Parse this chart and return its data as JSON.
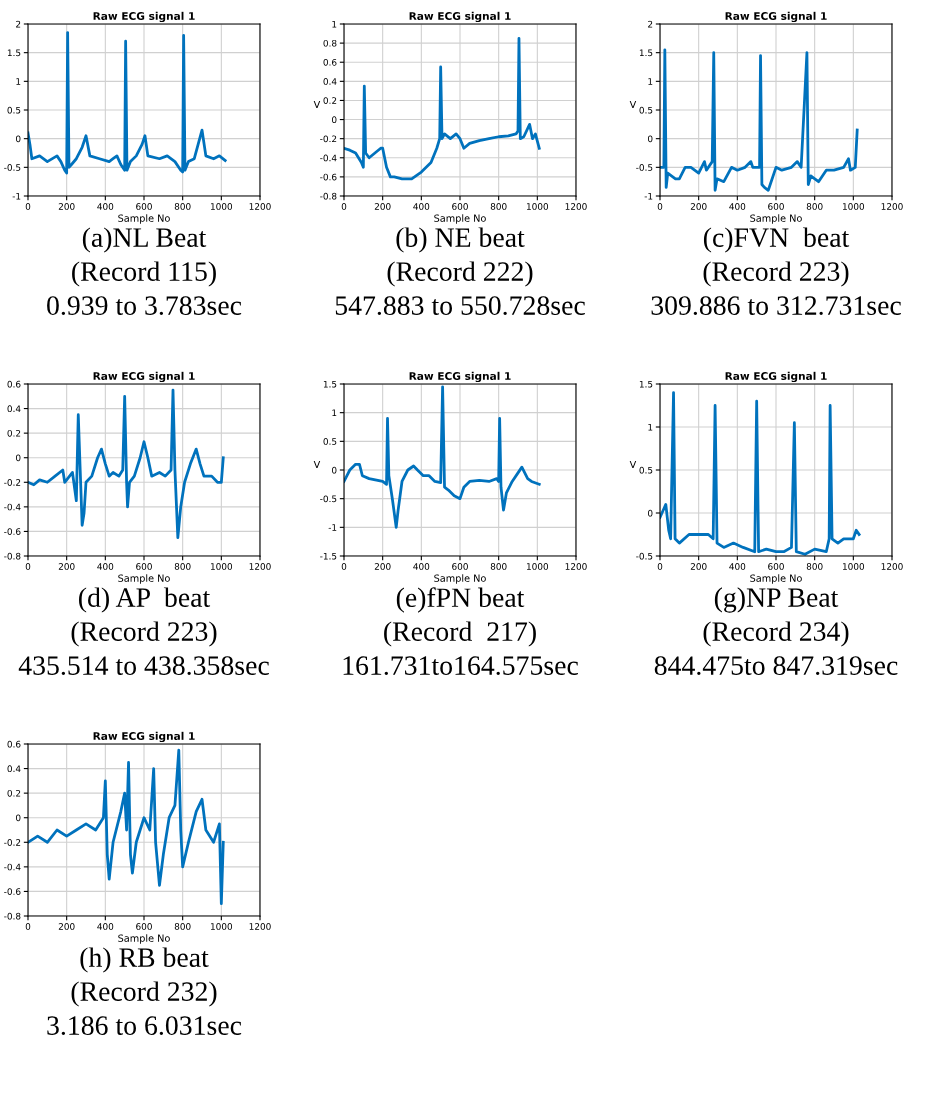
{
  "chart_data": [
    {
      "type": "line",
      "title": "Raw ECG signal 1",
      "xlabel": "Sample No",
      "color": "#0072bd",
      "grid": true,
      "xlim": [
        0,
        1200
      ],
      "xticks": [
        0,
        200,
        400,
        600,
        800,
        1000,
        1200
      ],
      "ylim": [
        -1,
        2
      ],
      "yticks": [
        -1,
        -0.5,
        0,
        0.5,
        1,
        1.5,
        2
      ],
      "annotations": [
        "(a)NL Beat",
        "(Record 115)",
        "0.939 to 3.783sec"
      ],
      "x": [
        0,
        10,
        20,
        60,
        100,
        150,
        170,
        190,
        200,
        205,
        212,
        225,
        250,
        280,
        300,
        320,
        370,
        420,
        440,
        460,
        480,
        500,
        505,
        512,
        530,
        560,
        590,
        605,
        620,
        680,
        720,
        760,
        790,
        800,
        805,
        812,
        830,
        860,
        880,
        900,
        920,
        960,
        990,
        1020
      ],
      "values": [
        0.1,
        -0.1,
        -0.35,
        -0.3,
        -0.4,
        -0.3,
        -0.4,
        -0.55,
        -0.6,
        1.85,
        -0.5,
        -0.45,
        -0.35,
        -0.15,
        0.05,
        -0.3,
        -0.35,
        -0.4,
        -0.35,
        -0.3,
        -0.45,
        -0.55,
        1.7,
        -0.55,
        -0.4,
        -0.3,
        -0.1,
        0.05,
        -0.3,
        -0.35,
        -0.3,
        -0.4,
        -0.55,
        -0.58,
        1.8,
        -0.55,
        -0.4,
        -0.35,
        -0.1,
        0.15,
        -0.3,
        -0.35,
        -0.3,
        -0.38
      ]
    },
    {
      "type": "line",
      "title": "Raw ECG signal 1",
      "xlabel": "Sample No",
      "ylabel": "V",
      "color": "#0072bd",
      "grid": true,
      "xlim": [
        0,
        1200
      ],
      "xticks": [
        0,
        200,
        400,
        600,
        800,
        1000,
        1200
      ],
      "ylim": [
        -0.8,
        1
      ],
      "yticks": [
        -0.8,
        -0.6,
        -0.4,
        -0.2,
        0,
        0.2,
        0.4,
        0.6,
        0.8,
        1
      ],
      "annotations": [
        "(b) NE beat",
        "(Record 222)",
        "547.883 to 550.728sec"
      ],
      "x": [
        0,
        30,
        60,
        90,
        100,
        105,
        112,
        130,
        160,
        190,
        200,
        220,
        240,
        260,
        300,
        350,
        400,
        450,
        480,
        495,
        500,
        507,
        520,
        550,
        580,
        600,
        620,
        650,
        700,
        750,
        800,
        850,
        890,
        900,
        905,
        912,
        930,
        960,
        975,
        990,
        1010
      ],
      "values": [
        -0.3,
        -0.32,
        -0.35,
        -0.45,
        -0.5,
        0.35,
        -0.35,
        -0.4,
        -0.35,
        -0.3,
        -0.3,
        -0.5,
        -0.6,
        -0.6,
        -0.62,
        -0.62,
        -0.55,
        -0.45,
        -0.3,
        -0.2,
        0.55,
        -0.2,
        -0.15,
        -0.2,
        -0.15,
        -0.2,
        -0.3,
        -0.25,
        -0.22,
        -0.2,
        -0.18,
        -0.17,
        -0.15,
        -0.12,
        0.85,
        -0.2,
        -0.18,
        -0.05,
        -0.2,
        -0.15,
        -0.3
      ]
    },
    {
      "type": "line",
      "title": "Raw ECG signal 1",
      "xlabel": "Sample No",
      "ylabel": "V",
      "color": "#0072bd",
      "grid": true,
      "xlim": [
        0,
        1200
      ],
      "xticks": [
        0,
        200,
        400,
        600,
        800,
        1000,
        1200
      ],
      "ylim": [
        -1,
        2
      ],
      "yticks": [
        -1,
        -0.5,
        0,
        0.5,
        1,
        1.5,
        2
      ],
      "annotations": [
        "(c)FVN  beat",
        "(Record 223)",
        "309.886 to 312.731sec"
      ],
      "x": [
        0,
        20,
        25,
        32,
        40,
        80,
        100,
        130,
        160,
        200,
        230,
        240,
        270,
        278,
        285,
        295,
        330,
        370,
        400,
        440,
        470,
        480,
        515,
        520,
        527,
        540,
        560,
        600,
        630,
        680,
        710,
        730,
        760,
        767,
        780,
        820,
        860,
        900,
        950,
        975,
        985,
        1010,
        1020
      ],
      "values": [
        -0.5,
        -0.5,
        1.55,
        -0.85,
        -0.6,
        -0.7,
        -0.7,
        -0.5,
        -0.5,
        -0.6,
        -0.4,
        -0.55,
        -0.4,
        1.5,
        -0.9,
        -0.7,
        -0.75,
        -0.5,
        -0.55,
        -0.5,
        -0.4,
        -0.5,
        -0.5,
        1.45,
        -0.8,
        -0.85,
        -0.9,
        -0.5,
        -0.55,
        -0.5,
        -0.4,
        -0.5,
        1.5,
        -0.8,
        -0.65,
        -0.75,
        -0.55,
        -0.55,
        -0.5,
        -0.35,
        -0.55,
        -0.5,
        0.15
      ]
    },
    {
      "type": "line",
      "title": "Raw ECG signal 1",
      "xlabel": "Sample No",
      "color": "#0072bd",
      "grid": true,
      "xlim": [
        0,
        1200
      ],
      "xticks": [
        0,
        200,
        400,
        600,
        800,
        1000,
        1200
      ],
      "ylim": [
        -0.8,
        0.6
      ],
      "yticks": [
        -0.8,
        -0.6,
        -0.4,
        -0.2,
        0,
        0.2,
        0.4,
        0.6
      ],
      "annotations": [
        "(d) AP  beat",
        "(Record 223)",
        "435.514 to 438.358sec"
      ],
      "x": [
        0,
        30,
        60,
        100,
        140,
        180,
        190,
        230,
        250,
        260,
        270,
        280,
        290,
        300,
        330,
        360,
        380,
        400,
        420,
        440,
        470,
        490,
        500,
        510,
        515,
        525,
        550,
        580,
        600,
        620,
        640,
        680,
        710,
        740,
        750,
        760,
        775,
        790,
        810,
        840,
        870,
        890,
        910,
        950,
        980,
        1000,
        1010
      ],
      "values": [
        -0.2,
        -0.22,
        -0.18,
        -0.2,
        -0.15,
        -0.1,
        -0.2,
        -0.12,
        -0.35,
        0.35,
        -0.1,
        -0.55,
        -0.45,
        -0.2,
        -0.15,
        0.0,
        0.07,
        -0.05,
        -0.15,
        -0.12,
        -0.15,
        -0.1,
        0.5,
        -0.2,
        -0.4,
        -0.2,
        -0.15,
        0.0,
        0.13,
        0.0,
        -0.15,
        -0.12,
        -0.15,
        -0.1,
        0.55,
        -0.1,
        -0.65,
        -0.4,
        -0.2,
        -0.05,
        0.07,
        -0.05,
        -0.15,
        -0.15,
        -0.2,
        -0.2,
        0.0
      ]
    },
    {
      "type": "line",
      "title": "Raw ECG signal 1",
      "xlabel": "Sample No",
      "ylabel": "V",
      "color": "#0072bd",
      "grid": true,
      "xlim": [
        0,
        1200
      ],
      "xticks": [
        0,
        200,
        400,
        600,
        800,
        1000,
        1200
      ],
      "ylim": [
        -1.5,
        1.5
      ],
      "yticks": [
        -1.5,
        -1,
        -0.5,
        0,
        0.5,
        1,
        1.5
      ],
      "annotations": [
        "(e)fPN beat",
        "(Record  217)",
        "161.731to164.575sec"
      ],
      "x": [
        0,
        30,
        60,
        80,
        95,
        130,
        200,
        220,
        225,
        232,
        250,
        270,
        280,
        300,
        330,
        360,
        380,
        410,
        440,
        470,
        500,
        510,
        520,
        540,
        570,
        600,
        620,
        650,
        700,
        750,
        790,
        800,
        805,
        812,
        825,
        840,
        870,
        900,
        920,
        950,
        970,
        1010
      ],
      "values": [
        -0.2,
        0.0,
        0.1,
        0.1,
        -0.1,
        -0.15,
        -0.2,
        -0.25,
        0.9,
        -0.1,
        -0.5,
        -1.0,
        -0.7,
        -0.2,
        0.0,
        0.07,
        0.0,
        -0.1,
        -0.1,
        -0.2,
        -0.22,
        1.45,
        -0.3,
        -0.35,
        -0.45,
        -0.5,
        -0.3,
        -0.2,
        -0.18,
        -0.2,
        -0.15,
        -0.2,
        0.9,
        -0.3,
        -0.7,
        -0.4,
        -0.2,
        -0.05,
        0.05,
        -0.15,
        -0.2,
        -0.25
      ]
    },
    {
      "type": "line",
      "title": "Raw ECG signal 1",
      "xlabel": "Sample No",
      "ylabel": "V",
      "color": "#0072bd",
      "grid": true,
      "xlim": [
        0,
        1200
      ],
      "xticks": [
        0,
        200,
        400,
        600,
        800,
        1000,
        1200
      ],
      "ylim": [
        -0.5,
        1.5
      ],
      "yticks": [
        -0.5,
        0,
        0.5,
        1,
        1.5
      ],
      "annotations": [
        "(g)NP Beat",
        "(Record 234)",
        "844.475to 847.319sec"
      ],
      "x": [
        0,
        20,
        30,
        45,
        55,
        70,
        78,
        100,
        150,
        200,
        250,
        275,
        285,
        295,
        330,
        380,
        430,
        490,
        500,
        510,
        550,
        600,
        640,
        680,
        695,
        705,
        750,
        800,
        860,
        875,
        880,
        890,
        920,
        950,
        970,
        1000,
        1015,
        1030
      ],
      "values": [
        -0.05,
        0.05,
        0.1,
        -0.2,
        -0.3,
        1.4,
        -0.3,
        -0.35,
        -0.25,
        -0.25,
        -0.25,
        -0.3,
        1.25,
        -0.35,
        -0.4,
        -0.35,
        -0.4,
        -0.45,
        1.3,
        -0.45,
        -0.42,
        -0.45,
        -0.45,
        -0.4,
        1.05,
        -0.45,
        -0.48,
        -0.42,
        -0.45,
        -0.3,
        1.25,
        -0.3,
        -0.35,
        -0.3,
        -0.3,
        -0.3,
        -0.2,
        -0.25
      ]
    },
    {
      "type": "line",
      "title": "Raw ECG signal 1",
      "xlabel": "Sample No",
      "color": "#0072bd",
      "grid": true,
      "xlim": [
        0,
        1200
      ],
      "xticks": [
        0,
        200,
        400,
        600,
        800,
        1000,
        1200
      ],
      "ylim": [
        -0.8,
        0.6
      ],
      "yticks": [
        -0.8,
        -0.6,
        -0.4,
        -0.2,
        0,
        0.2,
        0.4,
        0.6
      ],
      "annotations": [
        "(h) RB beat",
        "(Record 232)",
        "3.186 to 6.031sec"
      ],
      "x": [
        0,
        50,
        100,
        150,
        200,
        250,
        300,
        350,
        390,
        400,
        410,
        420,
        440,
        480,
        500,
        510,
        520,
        530,
        540,
        560,
        600,
        630,
        650,
        660,
        680,
        700,
        730,
        760,
        780,
        790,
        800,
        830,
        870,
        900,
        920,
        960,
        990,
        1000,
        1010
      ],
      "values": [
        -0.2,
        -0.15,
        -0.2,
        -0.1,
        -0.15,
        -0.1,
        -0.05,
        -0.1,
        0.0,
        0.3,
        -0.3,
        -0.5,
        -0.2,
        0.05,
        0.2,
        -0.1,
        0.45,
        -0.3,
        -0.45,
        -0.2,
        0.0,
        -0.1,
        0.4,
        -0.2,
        -0.55,
        -0.3,
        0.0,
        0.1,
        0.55,
        -0.1,
        -0.4,
        -0.2,
        0.05,
        0.15,
        -0.1,
        -0.2,
        -0.05,
        -0.7,
        -0.2
      ]
    }
  ]
}
